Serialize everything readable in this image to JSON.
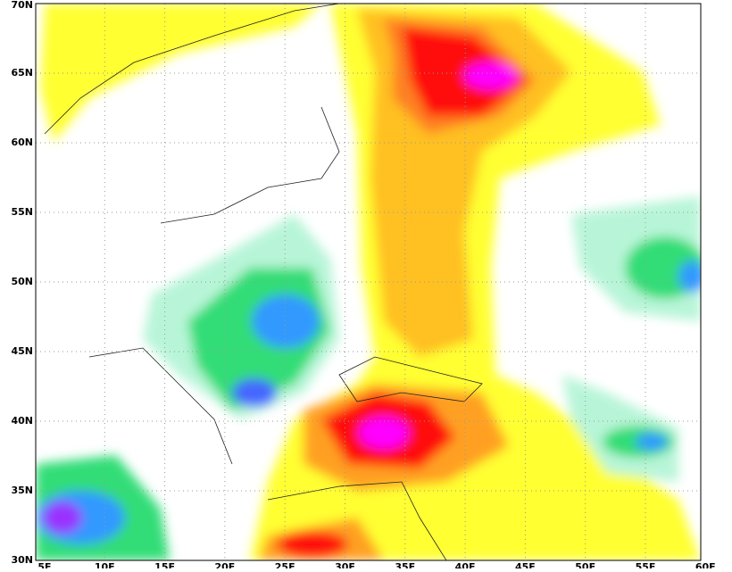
{
  "lat_labels": [
    "70N",
    "65N",
    "60N",
    "55N",
    "50N",
    "45N",
    "40N",
    "35N",
    "30N"
  ],
  "lon_labels": [
    "5E",
    "10E",
    "15E",
    "20E",
    "25E",
    "30E",
    "35E",
    "40E",
    "45E",
    "50E",
    "55E",
    "60E"
  ]
}
